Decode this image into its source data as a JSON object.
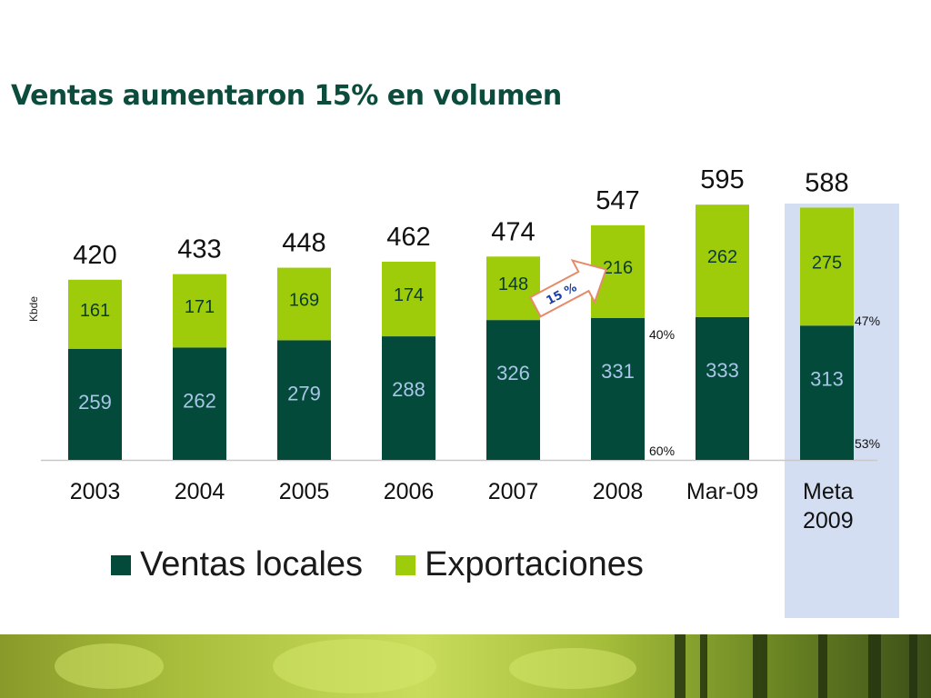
{
  "slide": {
    "title": "Ventas aumentaron 15% en volumen"
  },
  "colors": {
    "local": "#044a3a",
    "exports": "#9fcc0a",
    "highlight": "#d4def2",
    "title": "#0b4c3c"
  },
  "chart_data": {
    "type": "bar",
    "stacked": true,
    "title": "Ventas aumentaron 15% en volumen",
    "ylabel": "Kbde",
    "xlabel": "",
    "ylim": [
      0,
      620
    ],
    "categories": [
      "2003",
      "2004",
      "2005",
      "2006",
      "2007",
      "2008",
      "Mar-09",
      "Meta 2009"
    ],
    "series": [
      {
        "name": "Ventas locales",
        "color": "#044a3a",
        "values": [
          259,
          262,
          279,
          288,
          326,
          331,
          333,
          313
        ]
      },
      {
        "name": "Exportaciones",
        "color": "#9fcc0a",
        "values": [
          161,
          171,
          169,
          174,
          148,
          216,
          262,
          275
        ]
      }
    ],
    "totals": [
      420,
      433,
      448,
      462,
      474,
      547,
      595,
      588
    ],
    "highlighted_category": "Meta 2009",
    "legend_position": "bottom",
    "grid": false,
    "annotations": {
      "growth_arrow": "15 %",
      "share_2008": {
        "exports": "40%",
        "local": "60%"
      },
      "share_meta_2009": {
        "exports": "47%",
        "local": "53%"
      }
    }
  }
}
